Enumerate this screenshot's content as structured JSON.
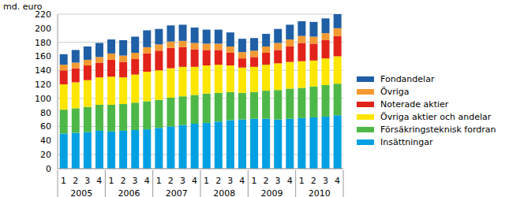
{
  "chart_data": {
    "type": "bar",
    "stacked": true,
    "grid": true,
    "y_label": "md. euro",
    "categories": [
      "1",
      "2",
      "3",
      "4",
      "1",
      "2",
      "3",
      "4",
      "1",
      "2",
      "3",
      "4",
      "1",
      "2",
      "3",
      "4",
      "1",
      "2",
      "3",
      "4",
      "1",
      "2",
      "3",
      "4"
    ],
    "x_group_labels": [
      "2005",
      "2006",
      "2007",
      "2008",
      "2009",
      "2010"
    ],
    "ylim": [
      0,
      220
    ],
    "yticks": [
      0,
      20,
      40,
      60,
      80,
      100,
      120,
      140,
      160,
      180,
      200,
      220
    ],
    "series": [
      {
        "name": "Insättningar",
        "color": "#00a0e3",
        "values": [
          50,
          51,
          52,
          54,
          53,
          54,
          55,
          56,
          58,
          60,
          62,
          64,
          65,
          67,
          69,
          70,
          71,
          71,
          70,
          71,
          72,
          73,
          74,
          76
        ]
      },
      {
        "name": "Försäkringsteknisk fordran",
        "color": "#4db848",
        "values": [
          34,
          35,
          36,
          37,
          38,
          38,
          39,
          40,
          40,
          41,
          41,
          41,
          42,
          41,
          40,
          38,
          38,
          40,
          42,
          43,
          43,
          44,
          45,
          45
        ]
      },
      {
        "name": "Övriga aktier och andelar",
        "color": "#ffe600",
        "values": [
          36,
          37,
          38,
          39,
          40,
          38,
          40,
          42,
          42,
          42,
          42,
          40,
          40,
          40,
          38,
          36,
          36,
          37,
          38,
          38,
          38,
          37,
          38,
          39
        ]
      },
      {
        "name": "Noterade aktier",
        "color": "#e2231a",
        "values": [
          20,
          20,
          21,
          21,
          24,
          22,
          22,
          26,
          28,
          29,
          28,
          25,
          22,
          21,
          18,
          13,
          14,
          17,
          19,
          22,
          26,
          24,
          26,
          29
        ]
      },
      {
        "name": "Övriga",
        "color": "#f39a32",
        "values": [
          8,
          8,
          8,
          8,
          9,
          9,
          9,
          9,
          9,
          9,
          9,
          9,
          9,
          9,
          9,
          9,
          9,
          9,
          10,
          10,
          10,
          10,
          10,
          11
        ]
      },
      {
        "name": "Fondandelar",
        "color": "#1f5fa6",
        "values": [
          15,
          18,
          19,
          20,
          20,
          22,
          23,
          24,
          22,
          23,
          23,
          22,
          20,
          20,
          20,
          19,
          18,
          18,
          20,
          21,
          21,
          21,
          21,
          20
        ]
      }
    ]
  }
}
